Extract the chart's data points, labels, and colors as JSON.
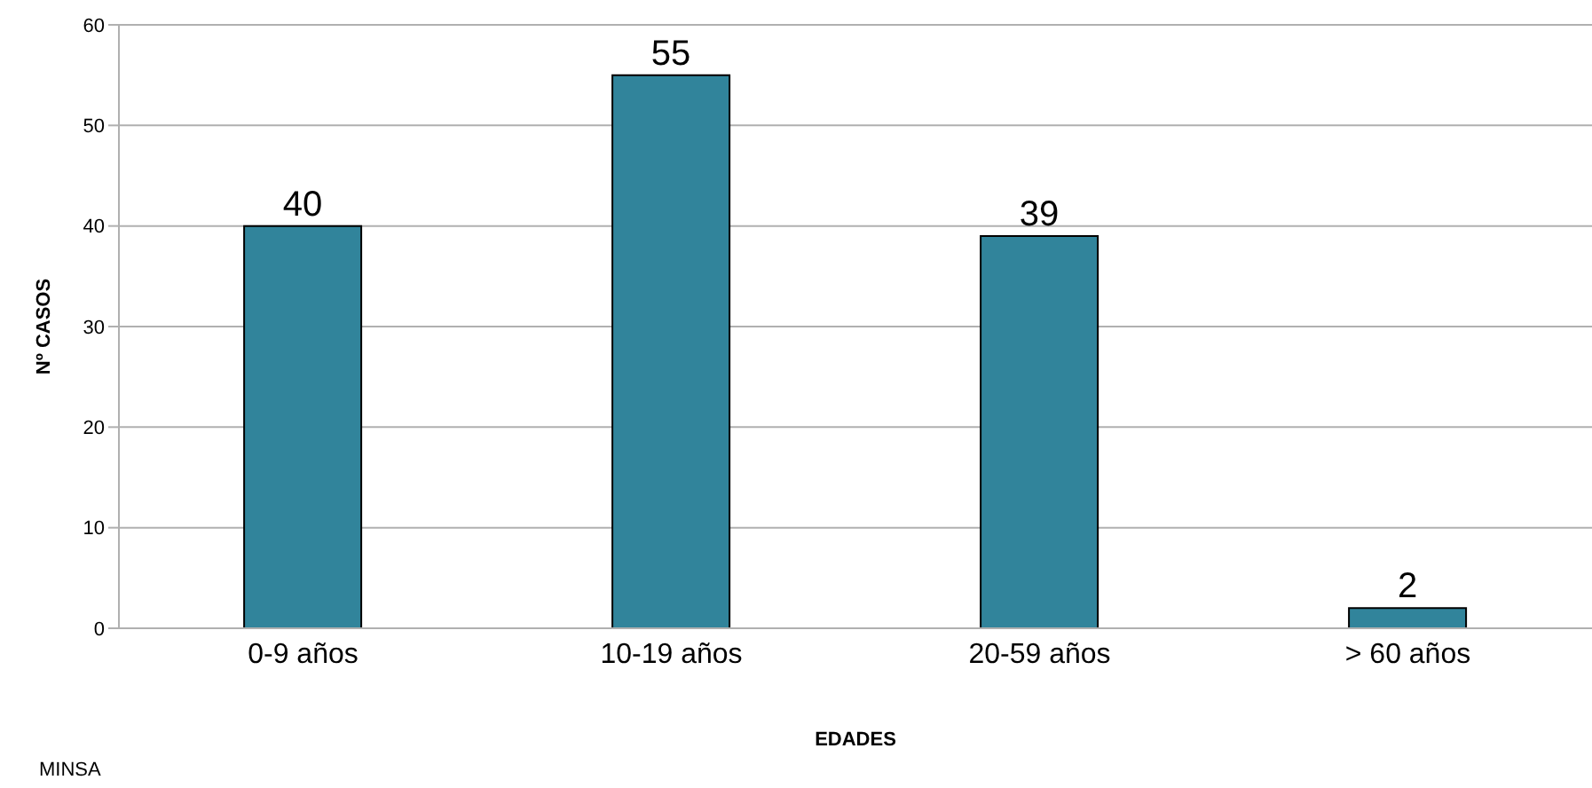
{
  "chart_data": {
    "type": "bar",
    "xlabel": "EDADES",
    "ylabel": "Nº CASOS",
    "categories": [
      "0-9 años",
      "10-19 años",
      "20-59 años",
      "> 60 años"
    ],
    "values": [
      40,
      55,
      39,
      2
    ],
    "color": "#31849b",
    "ylim": [
      0,
      60
    ],
    "yticks": [
      0,
      10,
      20,
      30,
      40,
      50,
      60
    ],
    "grid": "y",
    "data_labels": true,
    "annotations": [
      "MINSA"
    ]
  }
}
